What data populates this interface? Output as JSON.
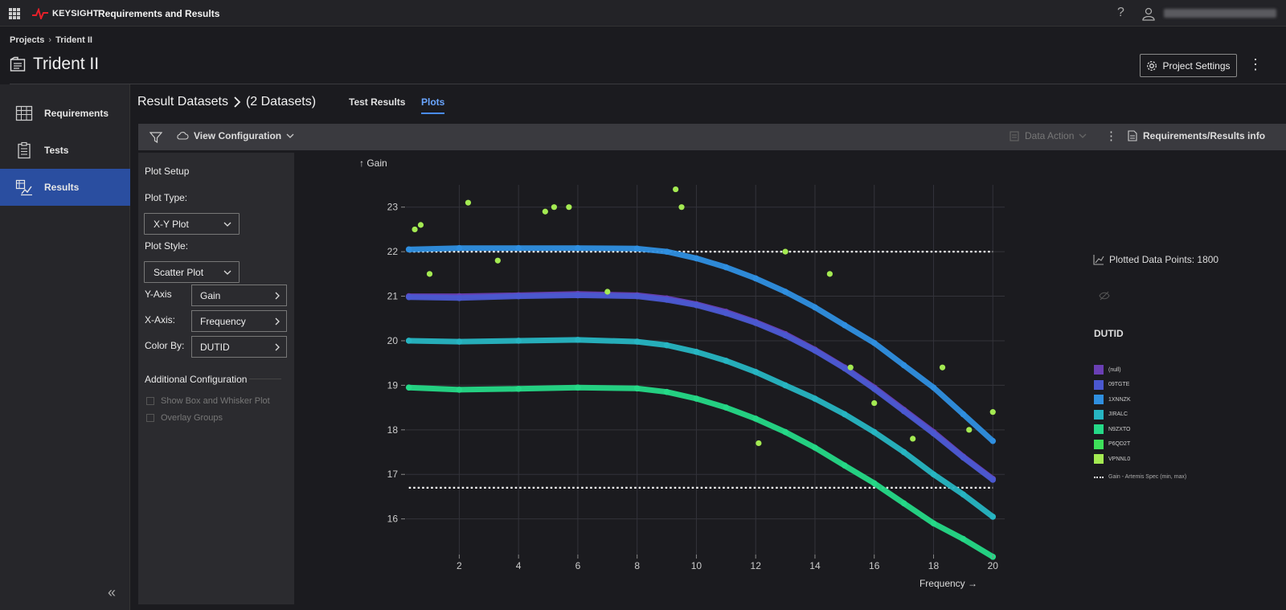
{
  "topbar": {
    "brand": "KEYSIGHT",
    "app_title": "Requirements and Results",
    "help_label": "?"
  },
  "breadcrumb": {
    "root": "Projects",
    "sep": "›",
    "current": "Trident II"
  },
  "page": {
    "title": "Trident II",
    "settings_label": "Project Settings"
  },
  "sidebar": {
    "items": [
      {
        "label": "Requirements"
      },
      {
        "label": "Tests"
      },
      {
        "label": "Results"
      }
    ]
  },
  "content": {
    "title": "Result Datasets",
    "count": "(2 Datasets)",
    "tabs": [
      {
        "label": "Test Results"
      },
      {
        "label": "Plots"
      }
    ]
  },
  "toolbar": {
    "view_config": "View Configuration",
    "data_action": "Data Action",
    "req_info": "Requirements/Results info"
  },
  "plot_setup": {
    "heading": "Plot Setup",
    "type_label": "Plot Type:",
    "type_value": "X-Y Plot",
    "style_label": "Plot Style:",
    "style_value": "Scatter Plot",
    "y_label": "Y-Axis",
    "y_value": "Gain",
    "x_label": "X-Axis:",
    "x_value": "Frequency",
    "color_label": "Color By:",
    "color_value": "DUTID",
    "additional": "Additional Configuration",
    "box_whisker": "Show Box and Whisker Plot",
    "overlay": "Overlay Groups"
  },
  "legend": {
    "plotted": "Plotted Data Points: 1800",
    "title": "DUTID",
    "entries": [
      {
        "label": "(null)",
        "color": "#6a3fb4"
      },
      {
        "label": "09TGTE",
        "color": "#4a58d0"
      },
      {
        "label": "1XNNZK",
        "color": "#2f8fe0"
      },
      {
        "label": "JIRALC",
        "color": "#27b5c2"
      },
      {
        "label": "N9ZXTO",
        "color": "#25d987"
      },
      {
        "label": "P6QD2T",
        "color": "#3ee05a"
      },
      {
        "label": "VPNNL0",
        "color": "#a4ea52"
      }
    ],
    "spec_label": "Gain - Artemis Spec (min, max)"
  },
  "chart_data": {
    "type": "scatter",
    "ylabel": "↑ Gain",
    "xlabel": "Frequency →",
    "xlim": [
      0.2,
      20.4
    ],
    "ylim": [
      15.2,
      23.5
    ],
    "xticks": [
      2,
      4,
      6,
      8,
      10,
      12,
      14,
      16,
      18,
      20
    ],
    "yticks": [
      16,
      17,
      18,
      19,
      20,
      21,
      22,
      23
    ],
    "grid": true,
    "spec_limits": {
      "min": 16.7,
      "max": 22.0
    },
    "series": [
      {
        "name": "1XNNZK",
        "color": "#2f8fe0",
        "x": [
          0.3,
          2,
          4,
          6,
          8,
          9,
          10,
          11,
          12,
          13,
          14,
          15,
          16,
          17,
          18,
          19,
          20
        ],
        "y": [
          22.05,
          22.08,
          22.08,
          22.08,
          22.07,
          22.0,
          21.85,
          21.65,
          21.4,
          21.1,
          20.75,
          20.35,
          19.95,
          19.45,
          18.95,
          18.35,
          17.75
        ]
      },
      {
        "name": "(null)",
        "color": "#6a3fb4",
        "x": [
          0.3,
          2,
          4,
          6,
          8,
          9,
          10,
          11,
          12,
          13,
          14,
          15,
          16,
          17,
          18,
          19,
          20
        ],
        "y": [
          21.0,
          21.0,
          21.02,
          21.05,
          21.02,
          20.95,
          20.82,
          20.65,
          20.42,
          20.15,
          19.8,
          19.4,
          18.95,
          18.45,
          17.95,
          17.4,
          16.9
        ]
      },
      {
        "name": "09TGTE",
        "color": "#4a58d0",
        "x": [
          0.3,
          2,
          4,
          6,
          8,
          9,
          10,
          11,
          12,
          13,
          14,
          15,
          16,
          17,
          18,
          19,
          20
        ],
        "y": [
          20.98,
          20.96,
          21.0,
          21.02,
          21.0,
          20.92,
          20.8,
          20.62,
          20.4,
          20.12,
          19.78,
          19.38,
          18.92,
          18.42,
          17.92,
          17.38,
          16.88
        ]
      },
      {
        "name": "JIRALC",
        "color": "#27b5c2",
        "x": [
          0.3,
          2,
          4,
          6,
          8,
          9,
          10,
          11,
          12,
          13,
          14,
          15,
          16,
          17,
          18,
          19,
          20
        ],
        "y": [
          20.0,
          19.98,
          20.0,
          20.02,
          19.98,
          19.9,
          19.75,
          19.55,
          19.3,
          19.0,
          18.7,
          18.35,
          17.95,
          17.5,
          17.0,
          16.55,
          16.05
        ]
      },
      {
        "name": "N9ZXTO",
        "color": "#25d987",
        "x": [
          0.3,
          2,
          4,
          6,
          8,
          9,
          10,
          11,
          12,
          13,
          14,
          15,
          16,
          17,
          18,
          19,
          20
        ],
        "y": [
          18.95,
          18.9,
          18.92,
          18.95,
          18.93,
          18.85,
          18.7,
          18.5,
          18.25,
          17.95,
          17.6,
          17.2,
          16.8,
          16.35,
          15.9,
          15.55,
          15.15
        ]
      },
      {
        "name": "VPNNL0",
        "color": "#a4ea52",
        "x": [
          0.5,
          0.7,
          1.0,
          2.3,
          3.3,
          4.9,
          5.2,
          5.7,
          7.0,
          9.3,
          9.5,
          12.1,
          13.0,
          14.5,
          15.2,
          16.0,
          17.3,
          18.3,
          19.2,
          20.0
        ],
        "y": [
          22.5,
          22.6,
          21.5,
          23.1,
          21.8,
          22.9,
          23.0,
          23.0,
          21.1,
          23.4,
          23.0,
          17.7,
          22.0,
          21.5,
          19.4,
          18.6,
          17.8,
          19.4,
          18.0,
          18.4
        ]
      }
    ]
  }
}
